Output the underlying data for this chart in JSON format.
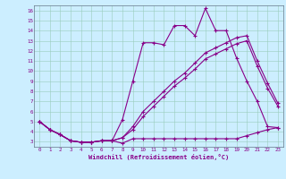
{
  "xlabel": "Windchill (Refroidissement éolien,°C)",
  "background_color": "#cceeff",
  "line_color": "#880088",
  "xlim": [
    -0.5,
    23.5
  ],
  "ylim": [
    2.5,
    16.5
  ],
  "yticks": [
    3,
    4,
    5,
    6,
    7,
    8,
    9,
    10,
    11,
    12,
    13,
    14,
    15,
    16
  ],
  "xticks": [
    0,
    1,
    2,
    3,
    4,
    5,
    6,
    7,
    8,
    9,
    10,
    11,
    12,
    13,
    14,
    15,
    16,
    17,
    18,
    19,
    20,
    21,
    22,
    23
  ],
  "line1_x": [
    0,
    1,
    2,
    3,
    4,
    5,
    6,
    7,
    8,
    9,
    10,
    11,
    12,
    13,
    14,
    15,
    16,
    17,
    18,
    19,
    20,
    21,
    22,
    23
  ],
  "line1_y": [
    5.0,
    4.2,
    3.7,
    3.1,
    2.95,
    2.95,
    3.1,
    3.1,
    2.85,
    3.3,
    3.3,
    3.3,
    3.3,
    3.3,
    3.3,
    3.3,
    3.3,
    3.3,
    3.3,
    3.3,
    3.6,
    3.9,
    4.2,
    4.4
  ],
  "line2_x": [
    0,
    1,
    2,
    3,
    4,
    5,
    6,
    7,
    8,
    9,
    10,
    11,
    12,
    13,
    14,
    15,
    16,
    17,
    18,
    19,
    20,
    21,
    22,
    23
  ],
  "line2_y": [
    5.0,
    4.2,
    3.7,
    3.1,
    2.95,
    2.95,
    3.1,
    3.1,
    5.2,
    9.0,
    12.8,
    12.8,
    12.6,
    14.5,
    14.5,
    13.5,
    16.2,
    14.0,
    14.0,
    11.3,
    9.0,
    7.0,
    4.5,
    4.4
  ],
  "line3_x": [
    0,
    1,
    2,
    3,
    4,
    5,
    6,
    7,
    8,
    9,
    10,
    11,
    12,
    13,
    14,
    15,
    16,
    17,
    18,
    19,
    20,
    21,
    22,
    23
  ],
  "line3_y": [
    5.0,
    4.2,
    3.7,
    3.1,
    2.95,
    2.95,
    3.1,
    3.1,
    3.4,
    4.5,
    6.0,
    7.0,
    8.0,
    9.0,
    9.8,
    10.8,
    11.8,
    12.3,
    12.8,
    13.3,
    13.5,
    11.0,
    8.8,
    6.8
  ],
  "line4_x": [
    0,
    1,
    2,
    3,
    4,
    5,
    6,
    7,
    8,
    9,
    10,
    11,
    12,
    13,
    14,
    15,
    16,
    17,
    18,
    19,
    20,
    21,
    22,
    23
  ],
  "line4_y": [
    5.0,
    4.2,
    3.7,
    3.1,
    2.95,
    2.95,
    3.1,
    3.1,
    3.4,
    4.2,
    5.5,
    6.5,
    7.5,
    8.5,
    9.3,
    10.2,
    11.2,
    11.7,
    12.2,
    12.7,
    13.0,
    10.5,
    8.3,
    6.5
  ]
}
